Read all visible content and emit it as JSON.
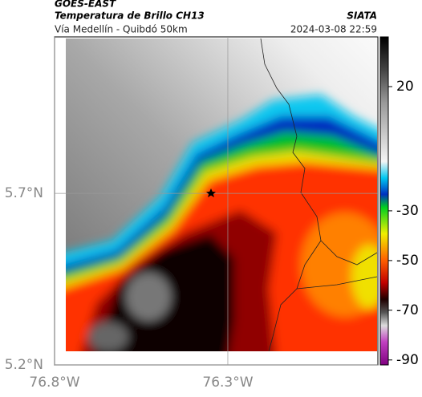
{
  "header": {
    "title": "GOES-EAST",
    "subtitle": "Temperatura de Brillo CH13",
    "region": "Vía Medellín - Quibdó 50km",
    "source": "SIATA",
    "datetime": "2024-03-08 22:59"
  },
  "map": {
    "xlim": [
      -76.8,
      -75.867
    ],
    "ylim": [
      5.2,
      6.156
    ],
    "xticks": [
      {
        "value": -76.8,
        "label": "76.8°W"
      },
      {
        "value": -76.3,
        "label": "76.3°W"
      }
    ],
    "yticks": [
      {
        "value": 5.7,
        "label": "5.7°N"
      },
      {
        "value": 5.2,
        "label": "5.2°N"
      }
    ],
    "grid": true
  },
  "colorbar": {
    "lim": [
      -92,
      40
    ],
    "ticks": [
      20,
      -30,
      -50,
      -70,
      -90
    ]
  }
}
